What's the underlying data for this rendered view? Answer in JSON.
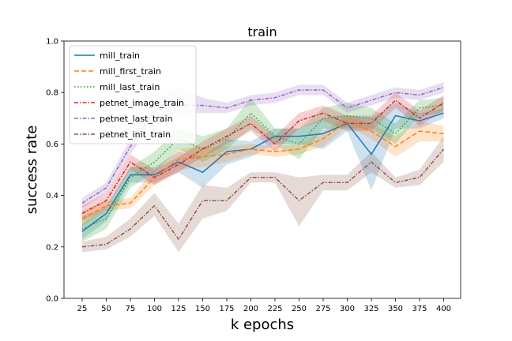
{
  "chart_data": {
    "type": "line",
    "title": "train",
    "xlabel": "k epochs",
    "ylabel": "success rate",
    "ylim": [
      0.0,
      1.0
    ],
    "yticks": [
      0.0,
      0.2,
      0.4,
      0.6,
      0.8,
      1.0
    ],
    "x": [
      25,
      50,
      75,
      100,
      125,
      150,
      175,
      200,
      225,
      250,
      275,
      300,
      325,
      350,
      375,
      400
    ],
    "grid": false,
    "legend_position": "top-left",
    "series": [
      {
        "name": "mill_train",
        "color": "#1f77b4",
        "dash": "solid",
        "values": [
          0.26,
          0.33,
          0.48,
          0.48,
          0.53,
          0.49,
          0.57,
          0.58,
          0.63,
          0.63,
          0.64,
          0.68,
          0.56,
          0.71,
          0.69,
          0.72
        ],
        "lower": [
          0.23,
          0.3,
          0.45,
          0.45,
          0.49,
          0.43,
          0.52,
          0.55,
          0.6,
          0.6,
          0.58,
          0.65,
          0.42,
          0.66,
          0.66,
          0.7
        ],
        "upper": [
          0.29,
          0.36,
          0.51,
          0.51,
          0.57,
          0.55,
          0.62,
          0.61,
          0.66,
          0.66,
          0.7,
          0.71,
          0.7,
          0.76,
          0.72,
          0.74
        ]
      },
      {
        "name": "mill_first_train",
        "color": "#ff7f0e",
        "dash": "dashed",
        "values": [
          0.31,
          0.36,
          0.37,
          0.47,
          0.54,
          0.55,
          0.56,
          0.58,
          0.57,
          0.58,
          0.62,
          0.69,
          0.65,
          0.59,
          0.65,
          0.64
        ],
        "lower": [
          0.28,
          0.34,
          0.35,
          0.44,
          0.5,
          0.51,
          0.53,
          0.56,
          0.55,
          0.56,
          0.59,
          0.67,
          0.62,
          0.55,
          0.61,
          0.61
        ],
        "upper": [
          0.34,
          0.38,
          0.39,
          0.5,
          0.58,
          0.59,
          0.59,
          0.6,
          0.59,
          0.6,
          0.65,
          0.71,
          0.68,
          0.63,
          0.69,
          0.67
        ]
      },
      {
        "name": "mill_last_train",
        "color": "#2ca02c",
        "dash": "dotted",
        "values": [
          0.27,
          0.31,
          0.47,
          0.53,
          0.62,
          0.58,
          0.62,
          0.72,
          0.63,
          0.6,
          0.7,
          0.71,
          0.7,
          0.64,
          0.74,
          0.75
        ],
        "lower": [
          0.22,
          0.27,
          0.43,
          0.49,
          0.58,
          0.53,
          0.58,
          0.66,
          0.6,
          0.54,
          0.66,
          0.66,
          0.66,
          0.6,
          0.71,
          0.72
        ],
        "upper": [
          0.32,
          0.35,
          0.51,
          0.57,
          0.66,
          0.63,
          0.66,
          0.78,
          0.66,
          0.66,
          0.74,
          0.76,
          0.74,
          0.68,
          0.77,
          0.78
        ]
      },
      {
        "name": "petnet_image_train",
        "color": "#d62728",
        "dash": "dashdot",
        "values": [
          0.33,
          0.38,
          0.53,
          0.47,
          0.52,
          0.58,
          0.63,
          0.68,
          0.6,
          0.69,
          0.72,
          0.68,
          0.68,
          0.77,
          0.7,
          0.76
        ],
        "lower": [
          0.3,
          0.35,
          0.5,
          0.44,
          0.49,
          0.55,
          0.6,
          0.65,
          0.57,
          0.66,
          0.69,
          0.65,
          0.65,
          0.74,
          0.67,
          0.73
        ],
        "upper": [
          0.36,
          0.41,
          0.56,
          0.5,
          0.55,
          0.61,
          0.66,
          0.71,
          0.63,
          0.72,
          0.75,
          0.71,
          0.71,
          0.8,
          0.73,
          0.79
        ]
      },
      {
        "name": "petnet_last_train",
        "color": "#9467bd",
        "dash": "dashdot",
        "values": [
          0.37,
          0.43,
          0.59,
          0.73,
          0.75,
          0.75,
          0.74,
          0.77,
          0.78,
          0.81,
          0.81,
          0.74,
          0.77,
          0.8,
          0.79,
          0.82
        ],
        "lower": [
          0.35,
          0.41,
          0.56,
          0.69,
          0.72,
          0.72,
          0.72,
          0.75,
          0.76,
          0.79,
          0.79,
          0.72,
          0.75,
          0.78,
          0.77,
          0.8
        ],
        "upper": [
          0.39,
          0.45,
          0.62,
          0.77,
          0.82,
          0.78,
          0.76,
          0.79,
          0.8,
          0.83,
          0.83,
          0.76,
          0.79,
          0.82,
          0.81,
          0.84
        ]
      },
      {
        "name": "petnet_init_train",
        "color": "#8c564b",
        "dash": "dashdot",
        "values": [
          0.2,
          0.21,
          0.27,
          0.36,
          0.23,
          0.38,
          0.38,
          0.47,
          0.47,
          0.38,
          0.45,
          0.45,
          0.53,
          0.45,
          0.47,
          0.58
        ],
        "lower": [
          0.18,
          0.19,
          0.24,
          0.32,
          0.18,
          0.31,
          0.34,
          0.45,
          0.45,
          0.28,
          0.42,
          0.42,
          0.49,
          0.43,
          0.44,
          0.53
        ],
        "upper": [
          0.22,
          0.24,
          0.31,
          0.41,
          0.29,
          0.44,
          0.43,
          0.49,
          0.49,
          0.47,
          0.48,
          0.48,
          0.57,
          0.47,
          0.5,
          0.63
        ]
      }
    ]
  }
}
